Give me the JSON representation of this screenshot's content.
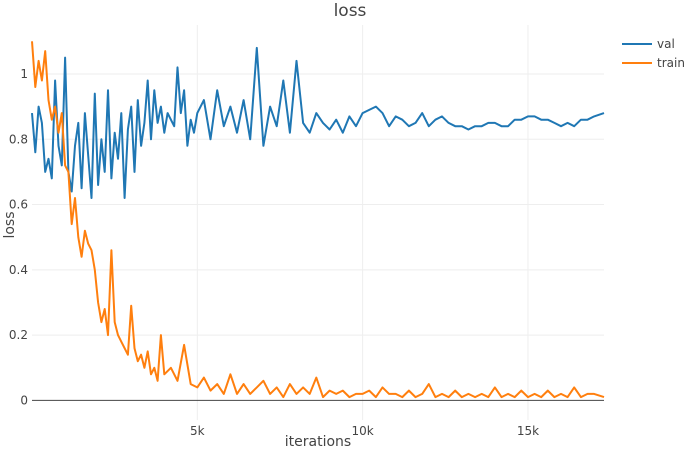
{
  "chart_data": {
    "type": "line",
    "title": "loss",
    "xlabel": "iterations",
    "ylabel": "loss",
    "xlim": [
      0,
      17300
    ],
    "ylim": [
      -0.06,
      1.15
    ],
    "grid": true,
    "legend_position": "top-right",
    "x_ticks": [
      {
        "value": 5000,
        "label": "5k"
      },
      {
        "value": 10000,
        "label": "10k"
      },
      {
        "value": 15000,
        "label": "15k"
      }
    ],
    "y_ticks": [
      {
        "value": 0,
        "label": "0"
      },
      {
        "value": 0.2,
        "label": "0.2"
      },
      {
        "value": 0.4,
        "label": "0.4"
      },
      {
        "value": 0.6,
        "label": "0.6"
      },
      {
        "value": 0.8,
        "label": "0.8"
      },
      {
        "value": 1,
        "label": "1"
      }
    ],
    "series": [
      {
        "name": "val",
        "color": "#1f77b4",
        "x": [
          0,
          100,
          200,
          300,
          400,
          500,
          600,
          700,
          800,
          900,
          1000,
          1100,
          1200,
          1300,
          1400,
          1500,
          1600,
          1700,
          1800,
          1900,
          2000,
          2100,
          2200,
          2300,
          2400,
          2500,
          2600,
          2700,
          2800,
          2900,
          3000,
          3100,
          3200,
          3300,
          3400,
          3500,
          3600,
          3700,
          3800,
          3900,
          4000,
          4100,
          4200,
          4300,
          4400,
          4500,
          4600,
          4700,
          4800,
          4900,
          5000,
          5200,
          5400,
          5600,
          5800,
          6000,
          6200,
          6400,
          6600,
          6800,
          7000,
          7200,
          7400,
          7600,
          7800,
          8000,
          8200,
          8400,
          8600,
          8800,
          9000,
          9200,
          9400,
          9600,
          9800,
          10000,
          10200,
          10400,
          10600,
          10800,
          11000,
          11200,
          11400,
          11600,
          11800,
          12000,
          12200,
          12400,
          12600,
          12800,
          13000,
          13200,
          13400,
          13600,
          13800,
          14000,
          14200,
          14400,
          14600,
          14800,
          15000,
          15200,
          15400,
          15600,
          15800,
          16000,
          16200,
          16400,
          16600,
          16800,
          17000,
          17300
        ],
        "values": [
          0.88,
          0.76,
          0.9,
          0.85,
          0.7,
          0.74,
          0.68,
          0.98,
          0.78,
          0.72,
          1.05,
          0.7,
          0.64,
          0.78,
          0.85,
          0.65,
          0.88,
          0.75,
          0.62,
          0.94,
          0.66,
          0.8,
          0.7,
          0.95,
          0.68,
          0.82,
          0.74,
          0.88,
          0.62,
          0.83,
          0.9,
          0.7,
          0.92,
          0.78,
          0.85,
          0.98,
          0.8,
          0.95,
          0.85,
          0.9,
          0.82,
          0.88,
          0.86,
          0.84,
          1.02,
          0.88,
          0.95,
          0.78,
          0.86,
          0.82,
          0.88,
          0.92,
          0.8,
          0.95,
          0.84,
          0.9,
          0.82,
          0.92,
          0.8,
          1.08,
          0.78,
          0.9,
          0.84,
          0.98,
          0.82,
          1.04,
          0.85,
          0.82,
          0.88,
          0.85,
          0.83,
          0.86,
          0.82,
          0.87,
          0.84,
          0.88,
          0.89,
          0.9,
          0.88,
          0.84,
          0.87,
          0.86,
          0.84,
          0.85,
          0.88,
          0.84,
          0.86,
          0.87,
          0.85,
          0.84,
          0.84,
          0.83,
          0.84,
          0.84,
          0.85,
          0.85,
          0.84,
          0.84,
          0.86,
          0.86,
          0.87,
          0.87,
          0.86,
          0.86,
          0.85,
          0.84,
          0.85,
          0.84,
          0.86,
          0.86,
          0.87,
          0.88
        ]
      },
      {
        "name": "train",
        "color": "#ff7f0e",
        "x": [
          0,
          100,
          200,
          300,
          400,
          500,
          600,
          700,
          800,
          900,
          1000,
          1100,
          1200,
          1300,
          1400,
          1500,
          1600,
          1700,
          1800,
          1900,
          2000,
          2100,
          2200,
          2300,
          2400,
          2500,
          2600,
          2700,
          2800,
          2900,
          3000,
          3100,
          3200,
          3300,
          3400,
          3500,
          3600,
          3700,
          3800,
          3900,
          4000,
          4200,
          4400,
          4600,
          4800,
          5000,
          5200,
          5400,
          5600,
          5800,
          6000,
          6200,
          6400,
          6600,
          6800,
          7000,
          7200,
          7400,
          7600,
          7800,
          8000,
          8200,
          8400,
          8600,
          8800,
          9000,
          9200,
          9400,
          9600,
          9800,
          10000,
          10200,
          10400,
          10600,
          10800,
          11000,
          11200,
          11400,
          11600,
          11800,
          12000,
          12200,
          12400,
          12600,
          12800,
          13000,
          13200,
          13400,
          13600,
          13800,
          14000,
          14200,
          14400,
          14600,
          14800,
          15000,
          15200,
          15400,
          15600,
          15800,
          16000,
          16200,
          16400,
          16600,
          16800,
          17000,
          17300
        ],
        "values": [
          1.1,
          0.96,
          1.04,
          0.98,
          1.07,
          0.92,
          0.86,
          0.9,
          0.82,
          0.88,
          0.72,
          0.7,
          0.54,
          0.62,
          0.5,
          0.44,
          0.52,
          0.48,
          0.46,
          0.4,
          0.3,
          0.24,
          0.28,
          0.2,
          0.46,
          0.24,
          0.2,
          0.18,
          0.16,
          0.14,
          0.29,
          0.16,
          0.12,
          0.14,
          0.1,
          0.15,
          0.08,
          0.1,
          0.06,
          0.2,
          0.08,
          0.1,
          0.06,
          0.17,
          0.05,
          0.04,
          0.07,
          0.03,
          0.05,
          0.02,
          0.08,
          0.02,
          0.05,
          0.02,
          0.04,
          0.06,
          0.02,
          0.04,
          0.01,
          0.05,
          0.02,
          0.04,
          0.02,
          0.07,
          0.01,
          0.03,
          0.02,
          0.03,
          0.01,
          0.02,
          0.02,
          0.03,
          0.01,
          0.04,
          0.02,
          0.02,
          0.01,
          0.03,
          0.01,
          0.02,
          0.05,
          0.01,
          0.02,
          0.01,
          0.03,
          0.01,
          0.02,
          0.01,
          0.02,
          0.01,
          0.04,
          0.01,
          0.02,
          0.01,
          0.03,
          0.01,
          0.02,
          0.01,
          0.03,
          0.01,
          0.02,
          0.01,
          0.04,
          0.01,
          0.02,
          0.02,
          0.01
        ]
      }
    ]
  }
}
